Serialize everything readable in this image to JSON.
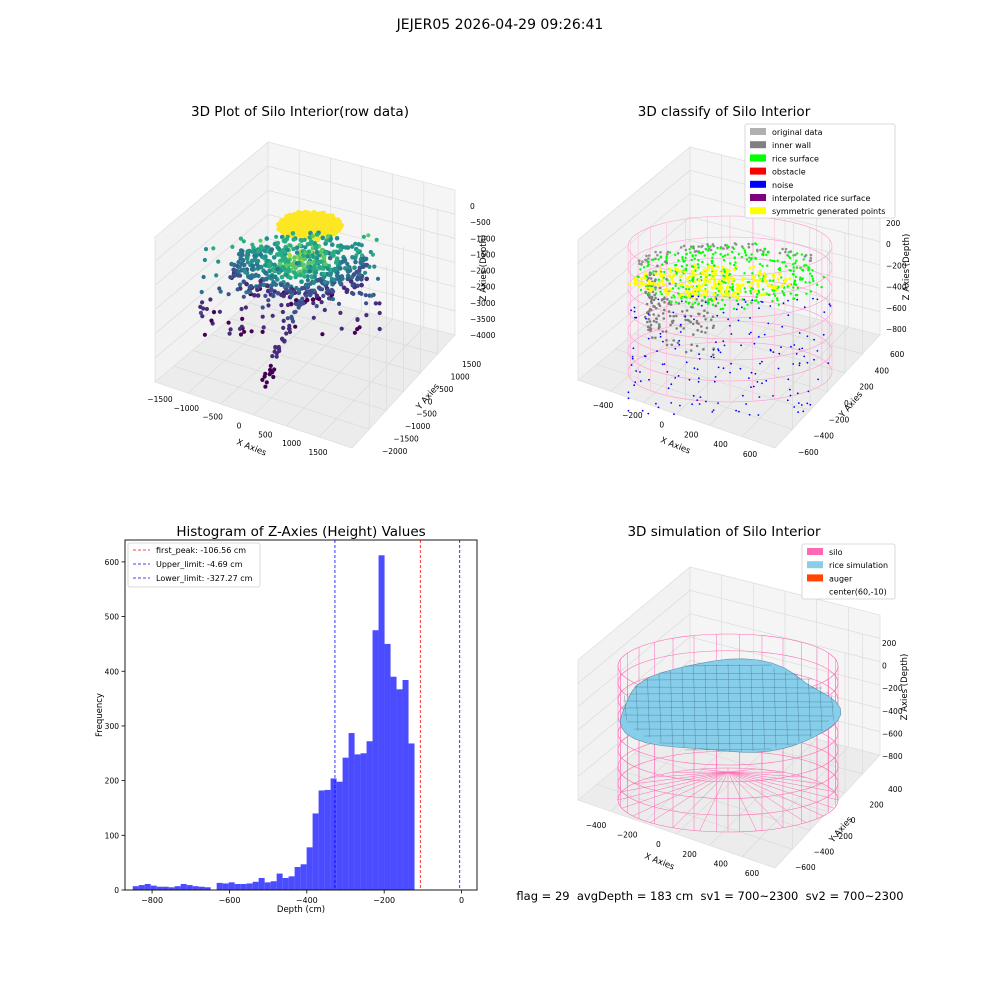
{
  "suptitle": "JEJER05 2026-04-29 09:26:41",
  "status_line": "flag = 29  avgDepth = 183 cm  sv1 = 700~2300  sv2 = 700~2300",
  "colors": {
    "hist_bar": "#4b4bff",
    "first_peak_line": "#ff0000",
    "limit_line": "#0000ff",
    "silo_wire": "#ff69b4",
    "rice_surface": "#87ceeb",
    "grid_pane": "#f2f2f2"
  },
  "chart_data": [
    {
      "type": "scatter",
      "panel": "3d-raw",
      "title": "3D Plot of Silo Interior(row data)",
      "xlabel": "X Axies",
      "ylabel": "Y Axies",
      "zlabel": "Z Axies (Depth)",
      "xticks": [
        "−1500",
        "−1000",
        "−500",
        "0",
        "500",
        "1000",
        "1500"
      ],
      "yticks": [
        "−2000",
        "−1500",
        "−1000",
        "−500",
        "0",
        "500",
        "1000",
        "1500"
      ],
      "zticks": [
        "0",
        "−500",
        "−1000",
        "−1500",
        "−2000",
        "−2500",
        "−3000",
        "−3500",
        "−4000"
      ],
      "xlim": [
        -1700,
        1700
      ],
      "ylim": [
        -2200,
        1700
      ],
      "zlim": [
        -4200,
        0
      ],
      "colormap": "viridis",
      "grid": true
    },
    {
      "type": "scatter",
      "panel": "3d-classify",
      "title": "3D classify of Silo Interior",
      "xlabel": "X Axies",
      "ylabel": "Y Axies",
      "zlabel": "Z Axies (Depth)",
      "xticks": [
        "−400",
        "−200",
        "0",
        "200",
        "400",
        "600"
      ],
      "yticks": [
        "−600",
        "−400",
        "−200",
        "0",
        "200",
        "400",
        "600"
      ],
      "zticks": [
        "200",
        "0",
        "−200",
        "−400",
        "−600",
        "−800"
      ],
      "legend": [
        {
          "label": "original data",
          "color": "#b0b0b0"
        },
        {
          "label": "inner wall",
          "color": "#808080"
        },
        {
          "label": "rice surface",
          "color": "#00ff00"
        },
        {
          "label": "obstacle",
          "color": "#ff0000"
        },
        {
          "label": "noise",
          "color": "#0000ff"
        },
        {
          "label": "interpolated rice surface",
          "color": "#800080"
        },
        {
          "label": "symmetric generated points",
          "color": "#ffff00"
        }
      ],
      "legend_loc": "upper right",
      "grid": true
    },
    {
      "type": "bar",
      "panel": "histogram",
      "title": "Histogram of Z-Axies (Height) Values",
      "xlabel": "Depth (cm)",
      "ylabel": "Frequency",
      "xlim": [
        -870,
        40
      ],
      "ylim": [
        0,
        640
      ],
      "xticks": [
        -800,
        -600,
        -400,
        -200,
        0
      ],
      "yticks": [
        0,
        100,
        200,
        300,
        400,
        500,
        600
      ],
      "bin_width": 15.5,
      "bin_start": -850,
      "values": [
        7,
        9,
        11,
        8,
        6,
        6,
        5,
        7,
        11,
        9,
        7,
        6,
        5,
        0,
        13,
        12,
        14,
        11,
        11,
        12,
        15,
        22,
        14,
        16,
        30,
        22,
        25,
        42,
        47,
        78,
        140,
        182,
        183,
        204,
        198,
        242,
        287,
        248,
        250,
        272,
        475,
        612,
        450,
        390,
        367,
        384,
        268
      ],
      "vlines": [
        {
          "label": "first_peak: -106.56 cm",
          "x": -106.56,
          "color": "#ff0000"
        },
        {
          "label": "Upper_limit: -4.69 cm",
          "x": -4.69,
          "color": "#0000ff"
        },
        {
          "label": "Lower_limit: -327.27 cm",
          "x": -327.27,
          "color": "#0000ff"
        }
      ],
      "legend_loc": "upper left"
    },
    {
      "type": "area",
      "panel": "3d-simulation",
      "title": "3D simulation of Silo Interior",
      "xlabel": "X Axies",
      "ylabel": "Y Axies",
      "zlabel": "Z Axies (Depth)",
      "xticks": [
        "−400",
        "−200",
        "0",
        "200",
        "400",
        "600"
      ],
      "yticks": [
        "−600",
        "−400",
        "−200",
        "0",
        "200",
        "400"
      ],
      "zticks": [
        "200",
        "0",
        "−200",
        "−400",
        "−600",
        "−800"
      ],
      "legend": [
        {
          "label": "silo",
          "color": "#ff69b4"
        },
        {
          "label": "rice simulation",
          "color": "#87ceeb"
        },
        {
          "label": "auger",
          "color": "#ff4500"
        },
        {
          "label": "center(60,-10)",
          "color": ""
        }
      ],
      "legend_loc": "upper right",
      "grid": true
    }
  ]
}
